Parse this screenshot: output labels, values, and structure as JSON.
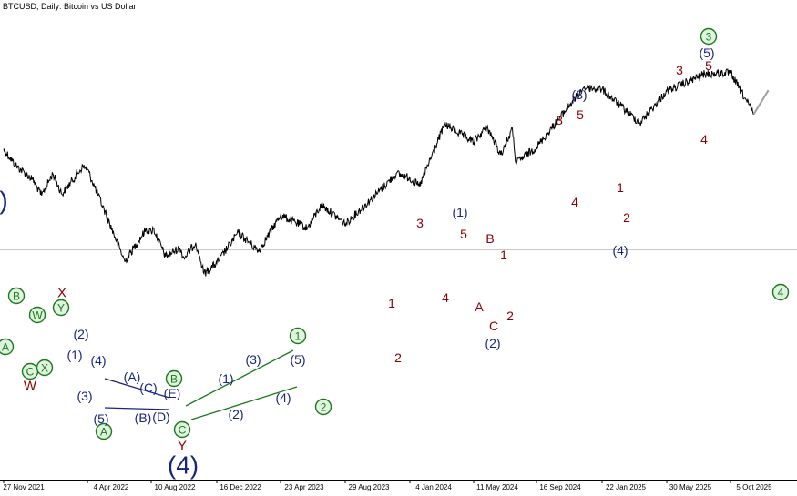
{
  "title": "BTCUSD, Daily:  Bitcoin vs US Dollar",
  "colors": {
    "price": "#000000",
    "grid": "#c8c8c8",
    "navy": "#1a237e",
    "maroon": "#8b0000",
    "green": "#1b7a1b",
    "green_fill": "#dff3df",
    "projection": "#a0a0a0"
  },
  "chart_data": {
    "type": "line",
    "title": "BTCUSD, Daily:  Bitcoin vs US Dollar",
    "xlabel": "",
    "ylabel": "",
    "x_tick_labels": [
      "27 Nov 2021",
      "4 Apr 2022",
      "10 Aug 2022",
      "16 Dec 2022",
      "23 Apr 2023",
      "29 Aug 2023",
      "4 Jan 2024",
      "11 May 2024",
      "16 Sep 2024",
      "22 Jan 2025",
      "30 May 2025",
      "5 Oct 2025"
    ],
    "y_tick_labels": [],
    "grid": "single horizontal reference line",
    "series": [
      {
        "values": [
          [
            "27 Nov 2021",
            57000
          ],
          [
            "2021-12-15",
            48000
          ],
          [
            "2022-01-10",
            41500
          ],
          [
            "2022-01-24",
            35000
          ],
          [
            "2022-02-10",
            44000
          ],
          [
            "2022-02-24",
            35500
          ],
          [
            "2022-03-28",
            47400
          ],
          [
            "4 Apr 2022",
            46000
          ],
          [
            "2022-05-12",
            28500
          ],
          [
            "2022-06-18",
            17600
          ],
          [
            "2022-07-30",
            24500
          ],
          [
            "10 Aug 2022",
            24000
          ],
          [
            "2022-08-14",
            24900
          ],
          [
            "2022-09-07",
            18500
          ],
          [
            "2022-10-05",
            20300
          ],
          [
            "2022-10-13",
            18200
          ],
          [
            "2022-11-05",
            21400
          ],
          [
            "2022-11-21",
            15500
          ],
          [
            "16 Dec 2022",
            17300
          ],
          [
            "2023-01-28",
            23800
          ],
          [
            "2023-03-10",
            19600
          ],
          [
            "23 Apr 2023",
            28500
          ],
          [
            "2023-06-15",
            24900
          ],
          [
            "2023-07-13",
            31800
          ],
          [
            "29 Aug 2023",
            26000
          ],
          [
            "2023-10-24",
            34500
          ],
          [
            "2023-12-08",
            44000
          ],
          [
            "4 Jan 2024",
            42000
          ],
          [
            "2024-01-23",
            38500
          ],
          [
            "2024-03-14",
            73800
          ],
          [
            "11 May 2024",
            61000
          ],
          [
            "2024-06-07",
            71900
          ],
          [
            "2024-07-05",
            53600
          ],
          [
            "2024-07-29",
            70000
          ],
          [
            "2024-08-05",
            49100
          ],
          [
            "16 Sep 2024",
            58000
          ],
          [
            "2024-12-17",
            108000
          ],
          [
            "22 Jan 2025",
            106000
          ],
          [
            "2025-04-07",
            74500
          ],
          [
            "30 May 2025",
            104000
          ],
          [
            "2025-08-14",
            124400
          ],
          [
            "5 Oct 2025",
            126000
          ],
          [
            "2025-11-21",
            82000
          ]
        ]
      },
      {
        "name": "projection",
        "values": [
          [
            "2025-11-21",
            82000
          ],
          [
            "2025-12-20",
            105000
          ]
        ]
      }
    ]
  },
  "wave_labels": [
    {
      "text": "W",
      "color": "maroon",
      "circled": false,
      "fs": 15
    },
    {
      "text": "X",
      "color": "maroon",
      "circled": false,
      "fs": 15
    },
    {
      "text": "Y",
      "color": "maroon",
      "circled": false,
      "fs": 15
    },
    {
      "text": "A",
      "color": "green",
      "circled": true,
      "fs": 12
    },
    {
      "text": "B",
      "color": "green",
      "circled": true,
      "fs": 12
    },
    {
      "text": "W",
      "color": "green",
      "circled": true,
      "fs": 12
    },
    {
      "text": "Y",
      "color": "green",
      "circled": true,
      "fs": 12
    },
    {
      "text": "C",
      "color": "green",
      "circled": true,
      "fs": 12
    },
    {
      "text": "X",
      "color": "green",
      "circled": true,
      "fs": 12
    },
    {
      "text": "A",
      "color": "green",
      "circled": true,
      "fs": 12
    },
    {
      "text": "B",
      "color": "green",
      "circled": true,
      "fs": 12
    },
    {
      "text": "C",
      "color": "green",
      "circled": true,
      "fs": 12
    },
    {
      "text": "(2)",
      "color": "navy",
      "circled": false,
      "fs": 14
    },
    {
      "text": "(1)",
      "color": "navy",
      "circled": false,
      "fs": 14
    },
    {
      "text": "(4)",
      "color": "navy",
      "circled": false,
      "fs": 14
    },
    {
      "text": "(3)",
      "color": "navy",
      "circled": false,
      "fs": 14
    },
    {
      "text": "(5)",
      "color": "navy",
      "circled": false,
      "fs": 14
    },
    {
      "text": "(A)",
      "color": "navy",
      "circled": false,
      "fs": 14
    },
    {
      "text": "(C)",
      "color": "navy",
      "circled": false,
      "fs": 14
    },
    {
      "text": "(E)",
      "color": "navy",
      "circled": false,
      "fs": 14
    },
    {
      "text": "(B)",
      "color": "navy",
      "circled": false,
      "fs": 14
    },
    {
      "text": "(D)",
      "color": "navy",
      "circled": false,
      "fs": 14
    },
    {
      "text": "(4)",
      "color": "navy",
      "circled": false,
      "fs": 28
    },
    {
      "text": "(1)",
      "color": "navy",
      "circled": false,
      "fs": 14
    },
    {
      "text": "(3)",
      "color": "navy",
      "circled": false,
      "fs": 14
    },
    {
      "text": "(2)",
      "color": "navy",
      "circled": false,
      "fs": 14
    },
    {
      "text": "(5)",
      "color": "navy",
      "circled": false,
      "fs": 14
    },
    {
      "text": "(4)",
      "color": "navy",
      "circled": false,
      "fs": 14
    },
    {
      "text": "1",
      "color": "green",
      "circled": true,
      "fs": 12
    },
    {
      "text": "2",
      "color": "green",
      "circled": true,
      "fs": 12
    },
    {
      "text": "1",
      "color": "maroon",
      "circled": false,
      "fs": 14
    },
    {
      "text": "2",
      "color": "maroon",
      "circled": false,
      "fs": 14
    },
    {
      "text": "3",
      "color": "maroon",
      "circled": false,
      "fs": 14
    },
    {
      "text": "4",
      "color": "maroon",
      "circled": false,
      "fs": 14
    },
    {
      "text": "(1)",
      "color": "navy",
      "circled": false,
      "fs": 14
    },
    {
      "text": "5",
      "color": "maroon",
      "circled": false,
      "fs": 14
    },
    {
      "text": "B",
      "color": "maroon",
      "circled": false,
      "fs": 14
    },
    {
      "text": "1",
      "color": "maroon",
      "circled": false,
      "fs": 14
    },
    {
      "text": "A",
      "color": "maroon",
      "circled": false,
      "fs": 14
    },
    {
      "text": "C",
      "color": "maroon",
      "circled": false,
      "fs": 14
    },
    {
      "text": "2",
      "color": "maroon",
      "circled": false,
      "fs": 14
    },
    {
      "text": "(2)",
      "color": "navy",
      "circled": false,
      "fs": 14
    },
    {
      "text": "(3)",
      "color": "navy",
      "circled": false,
      "fs": 14
    },
    {
      "text": "3",
      "color": "maroon",
      "circled": false,
      "fs": 14
    },
    {
      "text": "5",
      "color": "maroon",
      "circled": false,
      "fs": 14
    },
    {
      "text": "4",
      "color": "maroon",
      "circled": false,
      "fs": 14
    },
    {
      "text": "1",
      "color": "maroon",
      "circled": false,
      "fs": 14
    },
    {
      "text": "2",
      "color": "maroon",
      "circled": false,
      "fs": 14
    },
    {
      "text": "(4)",
      "color": "navy",
      "circled": false,
      "fs": 14
    },
    {
      "text": "3",
      "color": "green",
      "circled": true,
      "fs": 12
    },
    {
      "text": "(5)",
      "color": "navy",
      "circled": false,
      "fs": 14
    },
    {
      "text": "3",
      "color": "maroon",
      "circled": false,
      "fs": 14
    },
    {
      "text": "5",
      "color": "maroon",
      "circled": false,
      "fs": 14
    },
    {
      "text": "4",
      "color": "maroon",
      "circled": false,
      "fs": 14
    },
    {
      "text": "4",
      "color": "green",
      "circled": true,
      "fs": 12
    },
    {
      "text": ")",
      "color": "navy",
      "circled": false,
      "fs": 28
    }
  ]
}
